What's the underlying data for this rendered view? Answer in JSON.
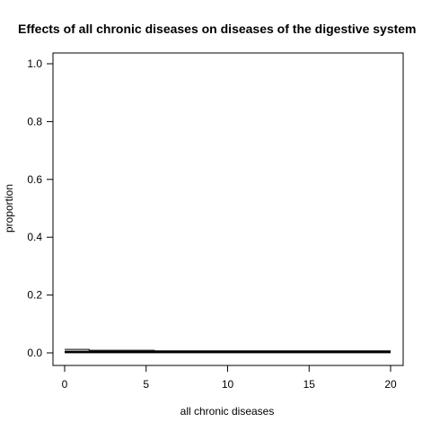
{
  "chart_data": {
    "type": "line",
    "title": "Effects of all chronic diseases on diseases of the digestive system",
    "xlabel": "all chronic diseases",
    "ylabel": "proportion",
    "xlim": [
      0,
      20
    ],
    "ylim": [
      0,
      1
    ],
    "x_ticks": [
      "0",
      "5",
      "10",
      "15",
      "20"
    ],
    "y_ticks": [
      "0.0",
      "0.2",
      "0.4",
      "0.6",
      "0.8",
      "1.0"
    ],
    "grid": false,
    "series": [
      {
        "style": "step",
        "x": [
          0,
          1.5,
          1.5,
          5.5,
          5.5,
          20
        ],
        "y": [
          0.012,
          0.012,
          0.009,
          0.009,
          0.007,
          0.007
        ]
      },
      {
        "style": "step",
        "x": [
          0,
          5.5,
          5.5,
          20
        ],
        "y": [
          0.004,
          0.004,
          0.004,
          0.004
        ]
      },
      {
        "style": "line",
        "x": [
          0,
          20
        ],
        "y": [
          0.0015,
          0.0015
        ]
      }
    ]
  }
}
